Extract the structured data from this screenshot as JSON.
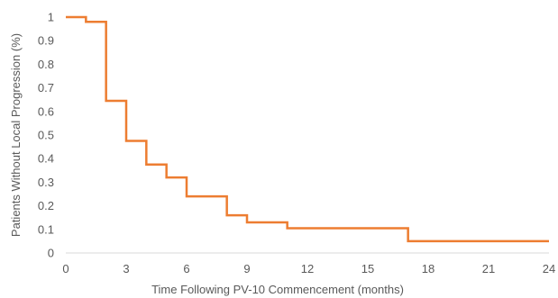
{
  "chart_data": {
    "type": "line",
    "subtype": "kaplan-meier-step",
    "xlabel": "Time Following PV-10  Commencement (months)",
    "ylabel": "Patients Without Local  Progression (%)",
    "xlim": [
      0,
      24
    ],
    "ylim": [
      0,
      1
    ],
    "x_ticks": [
      0,
      3,
      6,
      9,
      12,
      15,
      18,
      21,
      24
    ],
    "y_ticks": [
      0,
      0.1,
      0.2,
      0.3,
      0.4,
      0.5,
      0.6,
      0.7,
      0.8,
      0.9,
      1
    ],
    "grid": false,
    "legend": "none",
    "color": "#ED7D31",
    "series": [
      {
        "steps": [
          {
            "x": 0,
            "y": 1.0
          },
          {
            "x": 1,
            "y": 0.98
          },
          {
            "x": 2,
            "y": 0.645
          },
          {
            "x": 3,
            "y": 0.475
          },
          {
            "x": 4,
            "y": 0.375
          },
          {
            "x": 5,
            "y": 0.32
          },
          {
            "x": 6,
            "y": 0.24
          },
          {
            "x": 8,
            "y": 0.16
          },
          {
            "x": 9,
            "y": 0.13
          },
          {
            "x": 11,
            "y": 0.105
          },
          {
            "x": 17,
            "y": 0.05
          }
        ],
        "x_end": 24
      }
    ]
  }
}
